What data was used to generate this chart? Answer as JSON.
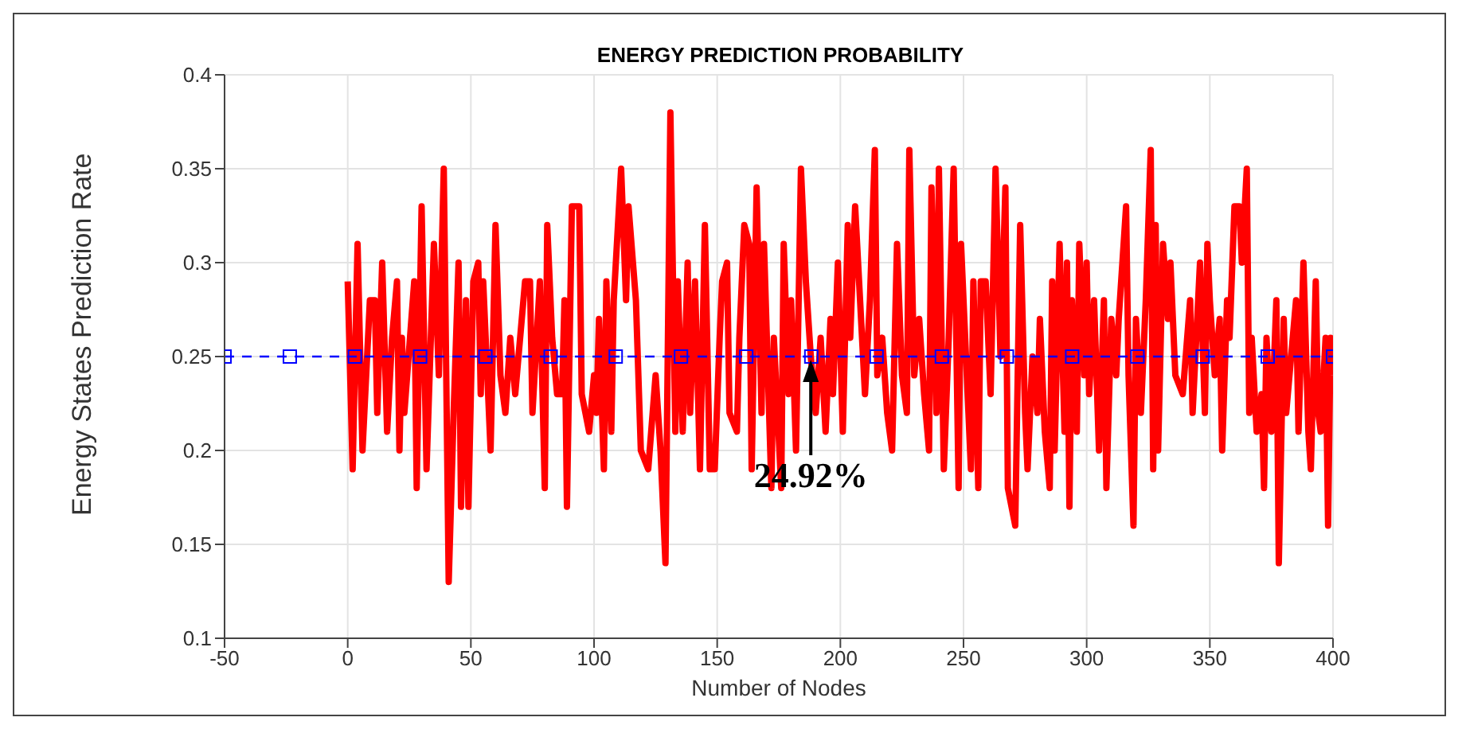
{
  "chart_data": {
    "type": "line",
    "title": "ENERGY PREDICTION PROBABILITY",
    "xlabel": "Number of Nodes",
    "ylabel": "Energy States Prediction Rate",
    "xlim": [
      -50,
      400
    ],
    "xticks": [
      -50,
      0,
      50,
      100,
      150,
      200,
      250,
      300,
      350,
      400
    ],
    "ylim": [
      0.1,
      0.4
    ],
    "yticks": [
      0.1,
      0.15,
      0.2,
      0.25,
      0.3,
      0.35,
      0.4
    ],
    "grid": true,
    "annotations": [
      {
        "text": "24.92%",
        "x": 188,
        "y": 0.25
      }
    ],
    "series": [
      {
        "color": "#ff0000",
        "marker": "none",
        "line_style": "solid",
        "x": [
          0,
          2,
          4,
          6,
          9,
          11,
          12,
          14,
          16,
          18,
          20,
          21,
          22,
          23,
          27,
          28,
          30,
          32,
          35,
          37,
          39,
          41,
          43,
          45,
          46,
          48,
          49,
          51,
          53,
          54,
          55,
          58,
          60,
          62,
          64,
          66,
          68,
          72,
          74,
          75,
          78,
          80,
          81,
          83,
          85,
          87,
          88,
          89,
          91,
          94,
          95,
          98,
          100,
          101,
          102,
          104,
          105,
          107,
          108,
          111,
          113,
          114,
          117,
          119,
          122,
          125,
          127,
          129,
          131,
          133,
          134,
          136,
          138,
          139,
          141,
          143,
          145,
          147,
          149,
          151,
          152,
          154,
          155,
          158,
          159,
          161,
          163,
          164,
          166,
          168,
          169,
          172,
          173,
          176,
          177,
          179,
          180,
          182,
          184,
          186,
          188,
          190,
          192,
          194,
          196,
          197,
          199,
          201,
          203,
          204,
          206,
          208,
          210,
          212,
          214,
          215,
          217,
          219,
          221,
          223,
          225,
          227,
          228,
          230,
          232,
          234,
          236,
          237,
          239,
          240,
          242,
          244,
          246,
          248,
          249,
          252,
          253,
          254,
          256,
          257,
          259,
          261,
          263,
          265,
          267,
          268,
          271,
          273,
          275,
          276,
          278,
          280,
          281,
          283,
          285,
          286,
          287,
          289,
          291,
          292,
          293,
          294,
          296,
          297,
          299,
          300,
          301,
          303,
          305,
          306,
          307,
          308,
          310,
          312,
          313,
          316,
          317,
          319,
          320,
          322,
          324,
          326,
          327,
          328,
          329,
          331,
          333,
          334,
          336,
          339,
          342,
          343,
          346,
          348,
          349,
          350,
          352,
          354,
          355,
          357,
          358,
          360,
          362,
          363,
          365,
          366,
          367,
          369,
          371,
          372,
          373,
          375,
          377,
          378,
          380,
          381,
          385,
          386,
          388,
          390,
          391,
          393,
          394,
          395,
          397,
          398,
          399,
          400
        ],
        "values": [
          0.29,
          0.19,
          0.31,
          0.2,
          0.28,
          0.28,
          0.22,
          0.3,
          0.21,
          0.26,
          0.29,
          0.2,
          0.26,
          0.22,
          0.29,
          0.18,
          0.33,
          0.19,
          0.31,
          0.24,
          0.35,
          0.13,
          0.22,
          0.3,
          0.17,
          0.28,
          0.17,
          0.29,
          0.3,
          0.23,
          0.29,
          0.2,
          0.32,
          0.24,
          0.22,
          0.26,
          0.23,
          0.29,
          0.29,
          0.22,
          0.29,
          0.18,
          0.32,
          0.26,
          0.23,
          0.23,
          0.28,
          0.17,
          0.33,
          0.33,
          0.23,
          0.21,
          0.24,
          0.22,
          0.27,
          0.19,
          0.29,
          0.21,
          0.28,
          0.35,
          0.28,
          0.33,
          0.28,
          0.2,
          0.19,
          0.24,
          0.2,
          0.14,
          0.38,
          0.21,
          0.29,
          0.21,
          0.3,
          0.22,
          0.29,
          0.19,
          0.32,
          0.19,
          0.19,
          0.26,
          0.29,
          0.3,
          0.22,
          0.21,
          0.26,
          0.32,
          0.31,
          0.19,
          0.34,
          0.22,
          0.31,
          0.18,
          0.26,
          0.18,
          0.31,
          0.23,
          0.28,
          0.2,
          0.35,
          0.29,
          0.25,
          0.22,
          0.26,
          0.21,
          0.27,
          0.23,
          0.3,
          0.21,
          0.32,
          0.26,
          0.33,
          0.28,
          0.23,
          0.28,
          0.36,
          0.24,
          0.26,
          0.22,
          0.2,
          0.31,
          0.24,
          0.22,
          0.36,
          0.24,
          0.27,
          0.23,
          0.2,
          0.34,
          0.22,
          0.35,
          0.19,
          0.26,
          0.35,
          0.18,
          0.31,
          0.22,
          0.19,
          0.29,
          0.18,
          0.29,
          0.29,
          0.23,
          0.35,
          0.25,
          0.34,
          0.18,
          0.16,
          0.32,
          0.22,
          0.19,
          0.25,
          0.22,
          0.27,
          0.21,
          0.18,
          0.29,
          0.2,
          0.31,
          0.21,
          0.3,
          0.17,
          0.28,
          0.21,
          0.31,
          0.24,
          0.3,
          0.23,
          0.28,
          0.2,
          0.24,
          0.28,
          0.18,
          0.27,
          0.24,
          0.27,
          0.33,
          0.24,
          0.16,
          0.27,
          0.22,
          0.28,
          0.36,
          0.19,
          0.32,
          0.2,
          0.31,
          0.27,
          0.3,
          0.24,
          0.23,
          0.28,
          0.22,
          0.3,
          0.22,
          0.31,
          0.28,
          0.24,
          0.27,
          0.2,
          0.28,
          0.26,
          0.33,
          0.33,
          0.3,
          0.35,
          0.22,
          0.26,
          0.21,
          0.23,
          0.18,
          0.26,
          0.21,
          0.28,
          0.14,
          0.27,
          0.22,
          0.28,
          0.21,
          0.3,
          0.21,
          0.19,
          0.29,
          0.22,
          0.21,
          0.26,
          0.16,
          0.26,
          0.24
        ]
      },
      {
        "color": "#0000ff",
        "marker": "square",
        "line_style": "dashed",
        "x": [
          -50,
          -23.5,
          2.9,
          29.4,
          55.9,
          82.4,
          108.8,
          135.3,
          161.8,
          188.2,
          214.7,
          241.2,
          267.6,
          294.1,
          320.6,
          347.1,
          373.5,
          400
        ],
        "values": [
          0.25,
          0.25,
          0.25,
          0.25,
          0.25,
          0.25,
          0.25,
          0.25,
          0.25,
          0.25,
          0.25,
          0.25,
          0.25,
          0.25,
          0.25,
          0.25,
          0.25,
          0.25
        ]
      }
    ]
  }
}
